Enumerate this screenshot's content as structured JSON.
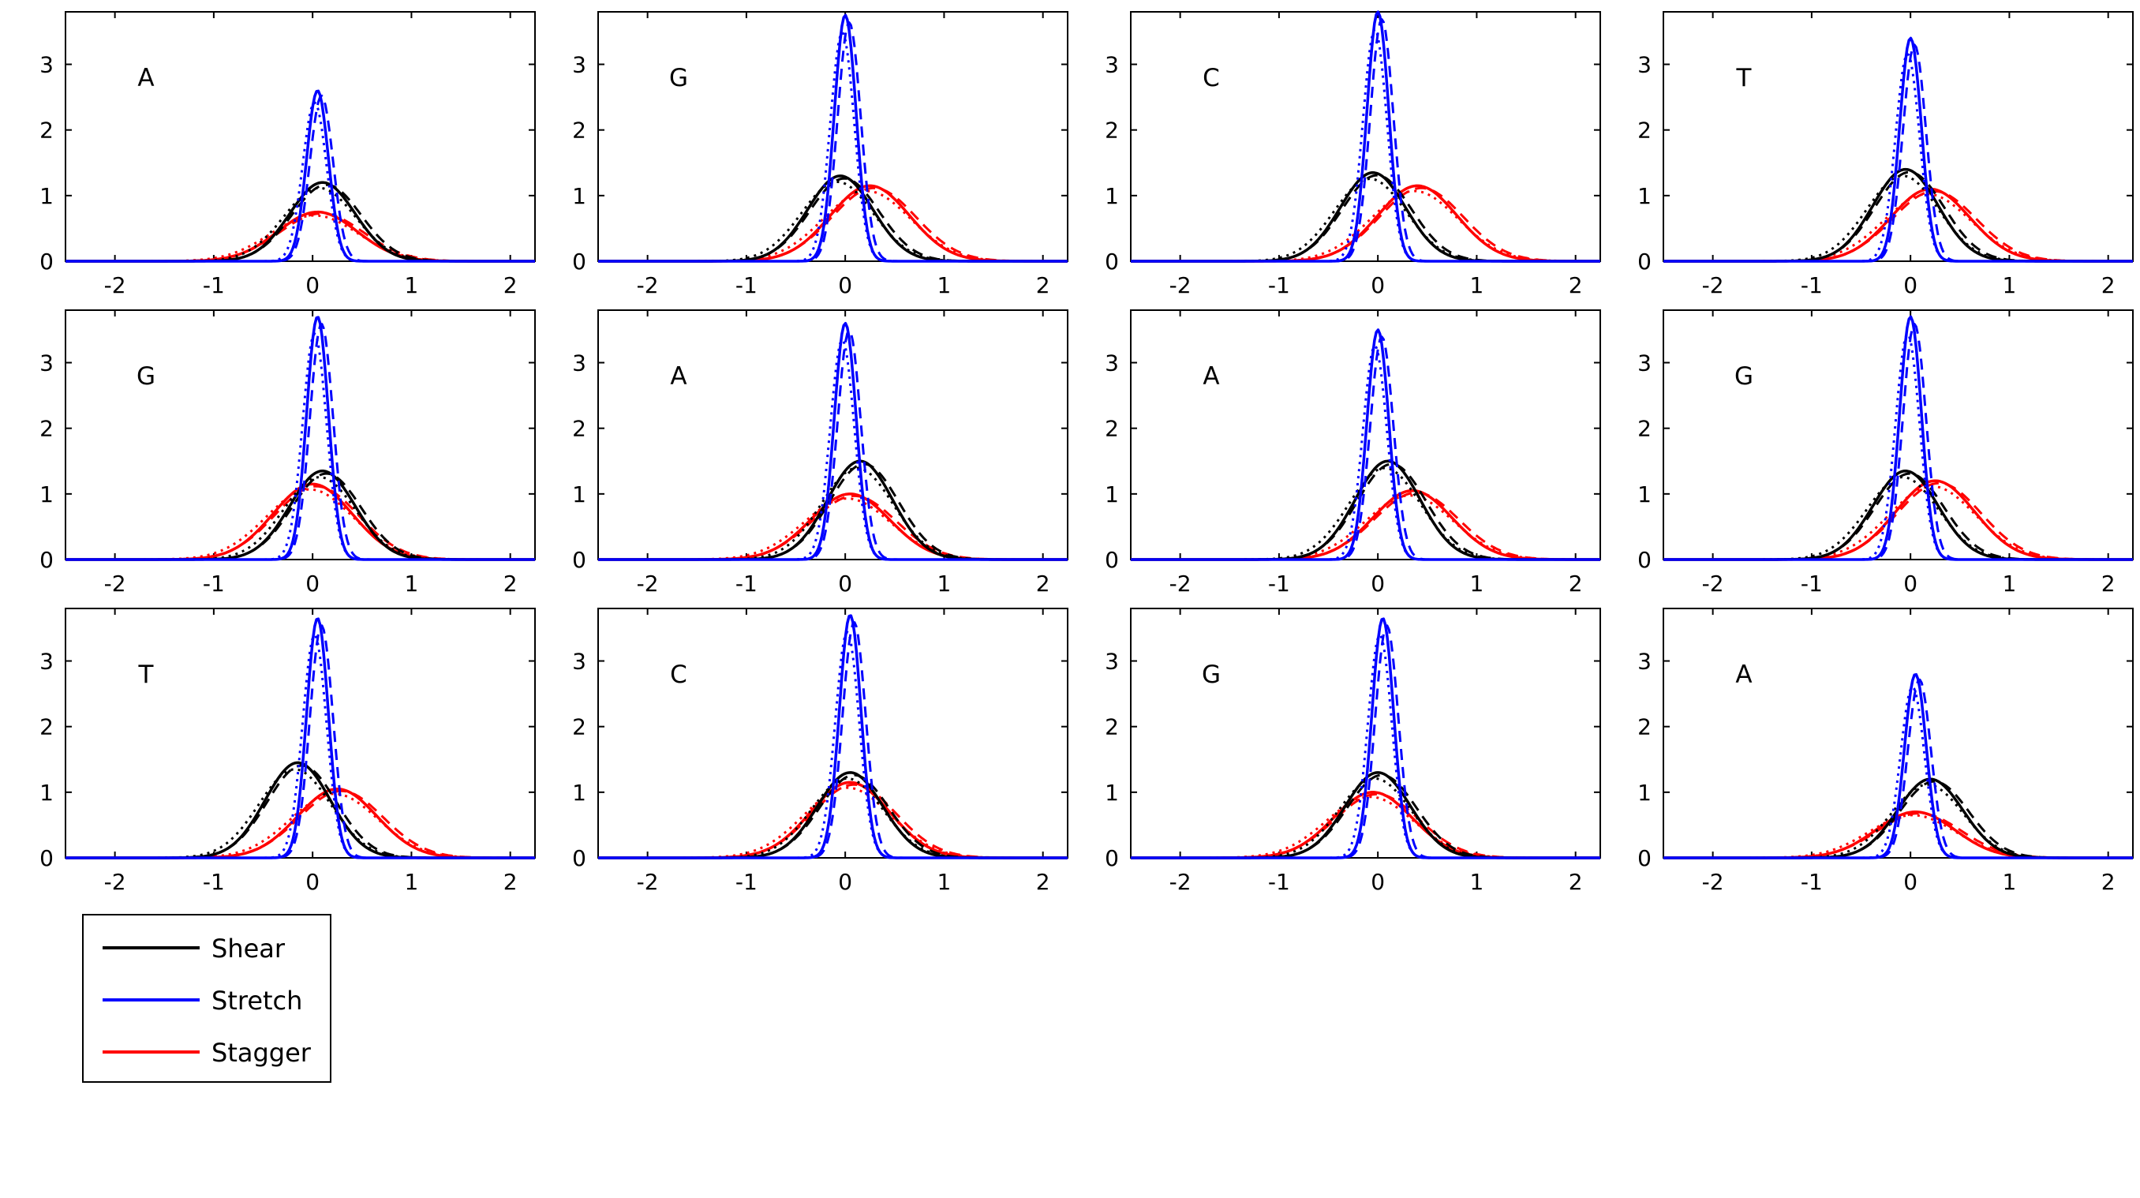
{
  "chart_data": {
    "type": "line",
    "layout": "3x4 grid of panels",
    "xlim": [
      -2.5,
      2.25
    ],
    "ylim": [
      0,
      3.8
    ],
    "xticks": [
      -2,
      -1,
      0,
      1,
      2
    ],
    "yticks": [
      0,
      1,
      2,
      3
    ],
    "grid": false,
    "legend": {
      "placement": "below bottom-left panel",
      "entries": [
        {
          "name": "Shear",
          "color": "#000000"
        },
        {
          "name": "Stretch",
          "color": "#0000ff"
        },
        {
          "name": "Stagger",
          "color": "#ff0000"
        }
      ]
    },
    "series_note": "each panel shows Gaussian-like density curves; peak height and center per series",
    "panels": [
      {
        "label": "A",
        "shear": {
          "peak": 1.2,
          "center": 0.1
        },
        "stretch": {
          "peak": 2.6,
          "center": 0.05
        },
        "stagger": {
          "peak": 0.75,
          "center": 0.05
        }
      },
      {
        "label": "G",
        "shear": {
          "peak": 1.3,
          "center": -0.05
        },
        "stretch": {
          "peak": 3.75,
          "center": 0.0
        },
        "stagger": {
          "peak": 1.15,
          "center": 0.25
        }
      },
      {
        "label": "C",
        "shear": {
          "peak": 1.35,
          "center": -0.05
        },
        "stretch": {
          "peak": 3.8,
          "center": 0.0
        },
        "stagger": {
          "peak": 1.15,
          "center": 0.4
        }
      },
      {
        "label": "T",
        "shear": {
          "peak": 1.4,
          "center": -0.05
        },
        "stretch": {
          "peak": 3.4,
          "center": 0.0
        },
        "stagger": {
          "peak": 1.1,
          "center": 0.2
        }
      },
      {
        "label": "G",
        "shear": {
          "peak": 1.35,
          "center": 0.1
        },
        "stretch": {
          "peak": 3.7,
          "center": 0.05
        },
        "stagger": {
          "peak": 1.15,
          "center": 0.0
        }
      },
      {
        "label": "A",
        "shear": {
          "peak": 1.5,
          "center": 0.15
        },
        "stretch": {
          "peak": 3.6,
          "center": 0.0
        },
        "stagger": {
          "peak": 1.0,
          "center": 0.05
        }
      },
      {
        "label": "A",
        "shear": {
          "peak": 1.5,
          "center": 0.1
        },
        "stretch": {
          "peak": 3.5,
          "center": 0.0
        },
        "stagger": {
          "peak": 1.05,
          "center": 0.35
        }
      },
      {
        "label": "G",
        "shear": {
          "peak": 1.35,
          "center": -0.05
        },
        "stretch": {
          "peak": 3.7,
          "center": 0.0
        },
        "stagger": {
          "peak": 1.2,
          "center": 0.25
        }
      },
      {
        "label": "T",
        "shear": {
          "peak": 1.45,
          "center": -0.15
        },
        "stretch": {
          "peak": 3.65,
          "center": 0.05
        },
        "stagger": {
          "peak": 1.05,
          "center": 0.25
        }
      },
      {
        "label": "C",
        "shear": {
          "peak": 1.3,
          "center": 0.05
        },
        "stretch": {
          "peak": 3.7,
          "center": 0.05
        },
        "stagger": {
          "peak": 1.15,
          "center": 0.05
        }
      },
      {
        "label": "G",
        "shear": {
          "peak": 1.3,
          "center": 0.0
        },
        "stretch": {
          "peak": 3.65,
          "center": 0.05
        },
        "stagger": {
          "peak": 1.0,
          "center": -0.05
        }
      },
      {
        "label": "A",
        "shear": {
          "peak": 1.2,
          "center": 0.2
        },
        "stretch": {
          "peak": 2.8,
          "center": 0.05
        },
        "stagger": {
          "peak": 0.7,
          "center": 0.05
        }
      }
    ]
  }
}
